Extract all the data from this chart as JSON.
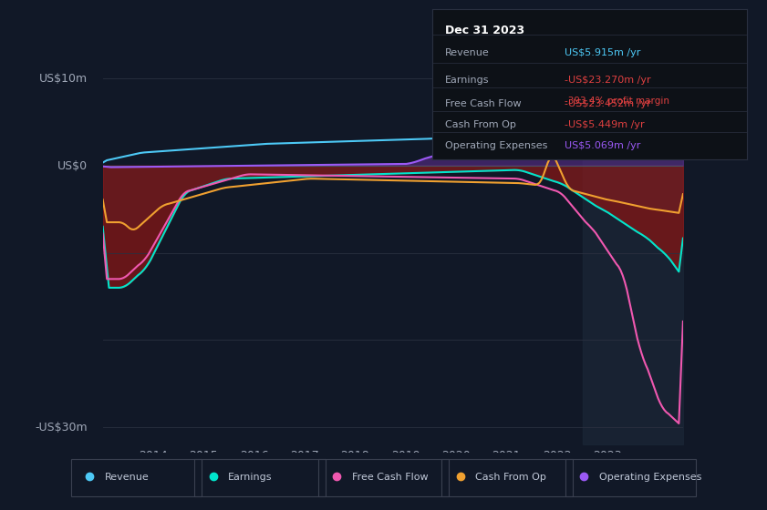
{
  "title": "Dec 31 2023",
  "bg_color": "#111827",
  "plot_bg_color": "#111827",
  "grid_color": "#2a3040",
  "y_label_10m": "US$10m",
  "y_label_0": "US$0",
  "y_label_neg30m": "-US$30m",
  "ylim": [
    -32,
    13
  ],
  "xlim_start": 2013.0,
  "xlim_end": 2024.5,
  "x_ticks": [
    2014,
    2015,
    2016,
    2017,
    2018,
    2019,
    2020,
    2021,
    2022,
    2023
  ],
  "colors": {
    "revenue": "#4dc9f6",
    "earnings": "#00e5cc",
    "free_cash_flow": "#f058b0",
    "cash_from_op": "#f0a030",
    "operating_expenses": "#9b59f5",
    "revenue_value": "#4dc9f6",
    "earnings_value": "#e04040",
    "earnings_pct": "#e04040",
    "fcf_value": "#e04040",
    "cash_op_value": "#e04040",
    "op_exp_value": "#9b59f5"
  },
  "info_box": {
    "title": "Dec 31 2023",
    "revenue_label": "Revenue",
    "revenue_value": "US$5.915m /yr",
    "earnings_label": "Earnings",
    "earnings_value": "-US$23.270m /yr",
    "earnings_pct": "-393.4% profit margin",
    "fcf_label": "Free Cash Flow",
    "fcf_value": "-US$23.452m /yr",
    "cash_op_label": "Cash From Op",
    "cash_op_value": "-US$5.449m /yr",
    "op_exp_label": "Operating Expenses",
    "op_exp_value": "US$5.069m /yr"
  },
  "legend_items": [
    "Revenue",
    "Earnings",
    "Free Cash Flow",
    "Cash From Op",
    "Operating Expenses"
  ]
}
